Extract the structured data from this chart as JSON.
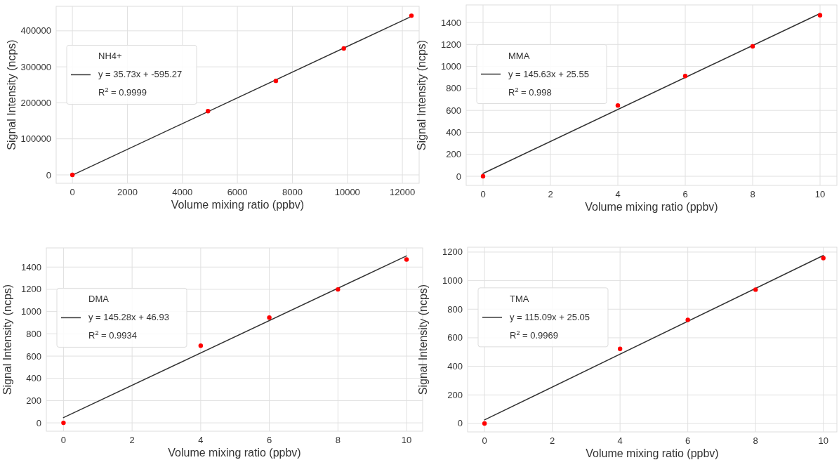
{
  "chart_data": [
    {
      "type": "scatter",
      "xlabel": "Volume mixing ratio (ppbv)",
      "ylabel": "Signal Intensity (ncps)",
      "legend_title": "NH4+",
      "legend": "left",
      "grid": true,
      "annotations": [
        "R$^{2}$ = 0.9999"
      ],
      "xlim": [
        -590,
        12610
      ],
      "ylim": [
        -23400,
        468000
      ],
      "xticks": [
        0,
        2000,
        4000,
        6000,
        8000,
        10000,
        12000
      ],
      "yticks": [
        0,
        100000,
        200000,
        300000,
        400000
      ],
      "series": [
        {
          "color": "#ff0000",
          "marker": "circle",
          "x": [
            0,
            4930,
            7400,
            9870,
            12330
          ],
          "values": [
            0,
            177000,
            261000,
            351000,
            442000
          ]
        },
        {
          "type": "line",
          "name": "y = 35.73x + -595.27",
          "color": "#333333",
          "line_style": "solid",
          "x": [
            0,
            12330
          ],
          "values": [
            -600,
            440000
          ]
        }
      ]
    },
    {
      "type": "scatter",
      "xlabel": "Volume mixing ratio (ppbv)",
      "ylabel": "Signal Intensity (ncps)",
      "legend_title": "MMA",
      "legend": "left",
      "grid": true,
      "annotations": [
        "R$^{2}$ = 0.998"
      ],
      "xlim": [
        -0.5,
        10.5
      ],
      "ylim": [
        -83,
        1560
      ],
      "xticks": [
        0,
        2,
        4,
        6,
        8,
        10
      ],
      "yticks": [
        0,
        200,
        400,
        600,
        800,
        1000,
        1200,
        1400
      ],
      "series": [
        {
          "color": "#ff0000",
          "marker": "circle",
          "x": [
            0,
            4,
            6,
            8,
            10
          ],
          "values": [
            0,
            645,
            913,
            1183,
            1466
          ]
        },
        {
          "type": "line",
          "name": "y = 145.63x + 25.55",
          "color": "#333333",
          "line_style": "solid",
          "x": [
            0,
            10
          ],
          "values": [
            26,
            1482
          ]
        }
      ]
    },
    {
      "type": "scatter",
      "xlabel": "Volume mixing ratio (ppbv)",
      "ylabel": "Signal Intensity (ncps)",
      "legend_title": "DMA",
      "legend": "left",
      "grid": true,
      "annotations": [
        "R$^{2}$ = 0.9934"
      ],
      "xlim": [
        -0.5,
        10.47
      ],
      "ylim": [
        -75,
        1572
      ],
      "xticks": [
        0,
        2,
        4,
        6,
        8,
        10
      ],
      "yticks": [
        0,
        200,
        400,
        600,
        800,
        1000,
        1200,
        1400
      ],
      "series": [
        {
          "color": "#ff0000",
          "marker": "circle",
          "x": [
            0,
            4,
            6,
            8,
            10
          ],
          "values": [
            0,
            693,
            946,
            1199,
            1468
          ]
        },
        {
          "type": "line",
          "name": "y = 145.28x + 46.93",
          "color": "#333333",
          "line_style": "solid",
          "x": [
            0,
            10
          ],
          "values": [
            47,
            1500
          ]
        }
      ]
    },
    {
      "type": "scatter",
      "xlabel": "Volume mixing ratio (ppbv)",
      "ylabel": "Signal Intensity (ncps)",
      "legend_title": "TMA",
      "legend": "left",
      "grid": true,
      "annotations": [
        "R$^{2}$ = 0.9969"
      ],
      "xlim": [
        -0.5,
        10.4
      ],
      "ylim": [
        -59,
        1234
      ],
      "xticks": [
        0,
        2,
        4,
        6,
        8,
        10
      ],
      "yticks": [
        0,
        200,
        400,
        600,
        800,
        1000,
        1200
      ],
      "series": [
        {
          "color": "#ff0000",
          "marker": "circle",
          "x": [
            0,
            4,
            6,
            8,
            10
          ],
          "values": [
            0,
            522,
            725,
            937,
            1158
          ]
        },
        {
          "type": "line",
          "name": "y = 115.09x + 25.05",
          "color": "#333333",
          "line_style": "solid",
          "x": [
            0,
            10
          ],
          "values": [
            25,
            1176
          ]
        }
      ]
    }
  ]
}
